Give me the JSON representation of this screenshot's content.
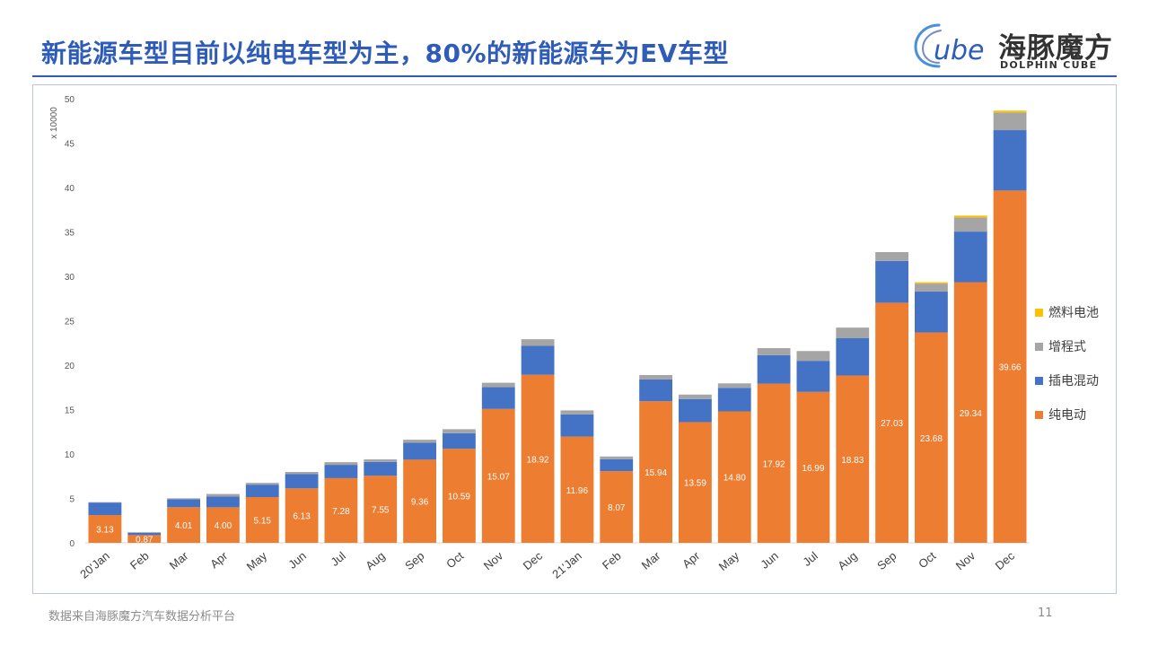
{
  "slide": {
    "title": "新能源车型目前以纯电车型为主，80%的新能源车为EV车型",
    "source": "数据来自海豚魔方汽车数据分析平台",
    "page_number": "11"
  },
  "brand": {
    "logo_text": "ube",
    "name_cn": "海豚魔方",
    "name_en": "DOLPHIN CUBE"
  },
  "chart_data": {
    "type": "bar",
    "stacked": true,
    "ylabel": "x 10000",
    "ylim": [
      0,
      50
    ],
    "yticks": [
      0,
      5,
      10,
      15,
      20,
      25,
      30,
      35,
      40,
      45,
      50
    ],
    "grid": false,
    "legend_position": "right",
    "categories": [
      "20'Jan",
      "Feb",
      "Mar",
      "Apr",
      "May",
      "Jun",
      "Jul",
      "Aug",
      "Sep",
      "Oct",
      "Nov",
      "Dec",
      "21'Jan",
      "Feb",
      "Mar",
      "Apr",
      "May",
      "Jun",
      "Jul",
      "Aug",
      "Sep",
      "Oct",
      "Nov",
      "Dec"
    ],
    "series": [
      {
        "name": "纯电动",
        "color": "#ed7d31",
        "show_labels": true,
        "values": [
          3.13,
          0.87,
          4.01,
          4.0,
          5.15,
          6.13,
          7.28,
          7.55,
          9.36,
          10.59,
          15.07,
          18.92,
          11.96,
          8.07,
          15.94,
          13.59,
          14.8,
          17.92,
          16.99,
          18.83,
          27.03,
          23.68,
          29.34,
          39.66
        ]
      },
      {
        "name": "插电混动",
        "color": "#4472c4",
        "values": [
          1.4,
          0.25,
          0.9,
          1.2,
          1.4,
          1.6,
          1.5,
          1.55,
          1.9,
          1.75,
          2.45,
          3.25,
          2.5,
          1.35,
          2.45,
          2.6,
          2.65,
          3.2,
          3.5,
          4.2,
          4.7,
          4.6,
          5.7,
          6.8
        ]
      },
      {
        "name": "增程式",
        "color": "#a5a5a5",
        "values": [
          0.05,
          0.08,
          0.1,
          0.3,
          0.2,
          0.25,
          0.3,
          0.3,
          0.35,
          0.45,
          0.5,
          0.75,
          0.45,
          0.3,
          0.5,
          0.5,
          0.5,
          0.8,
          1.1,
          1.2,
          1.0,
          0.9,
          1.6,
          2.0
        ]
      },
      {
        "name": "燃料电池",
        "color": "#ffc000",
        "values": [
          0,
          0,
          0,
          0,
          0,
          0,
          0,
          0,
          0,
          0,
          0,
          0,
          0,
          0,
          0,
          0,
          0,
          0,
          0,
          0,
          0,
          0.15,
          0.2,
          0.2
        ]
      }
    ]
  }
}
